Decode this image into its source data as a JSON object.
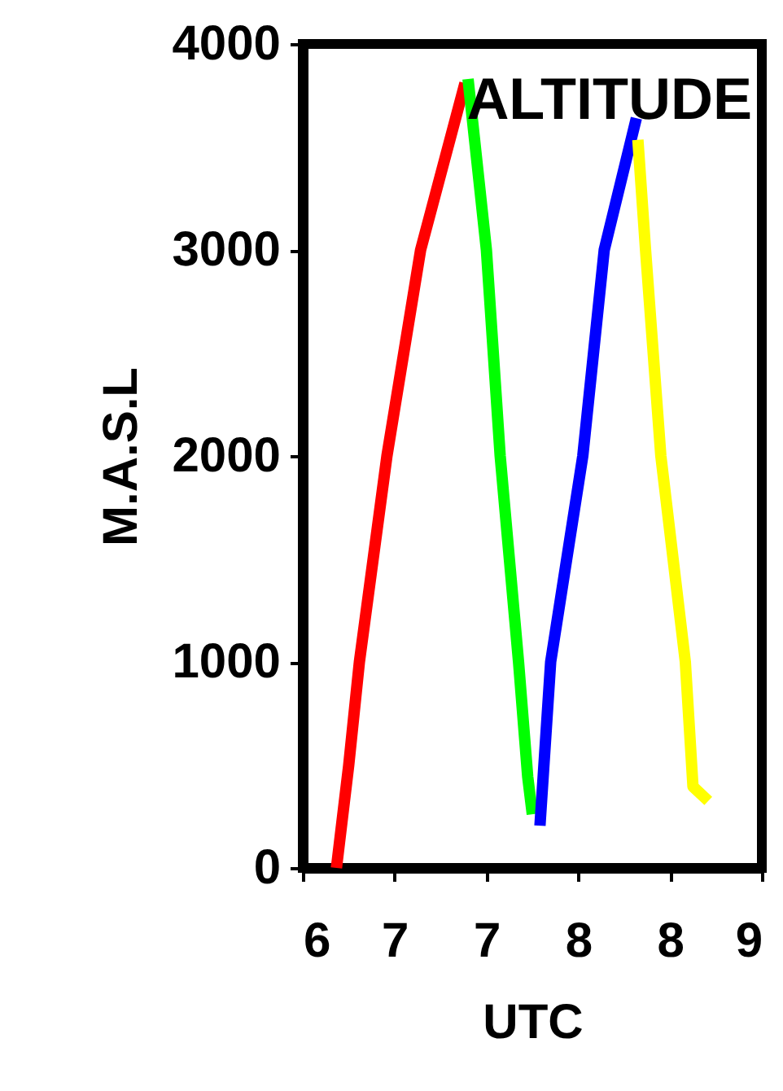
{
  "chart_data": {
    "type": "line",
    "title": "ALTITUDE",
    "xlabel": "UTC",
    "ylabel": "M.A.S.L",
    "series": [
      {
        "color": "#ff0000",
        "x": [
          6.22,
          6.3,
          6.37,
          6.55,
          6.77,
          7.06
        ],
        "values": [
          0,
          497,
          1000,
          2000,
          3000,
          3810
        ]
      },
      {
        "color": "#00ff00",
        "x": [
          7.08,
          7.2,
          7.29,
          7.41,
          7.47,
          7.5
        ],
        "values": [
          3830,
          3000,
          2000,
          1000,
          442,
          260
        ]
      },
      {
        "color": "#0000ff",
        "x": [
          7.55,
          7.62,
          7.83,
          7.97,
          8.18
        ],
        "values": [
          205,
          1000,
          2000,
          3000,
          3640
        ]
      },
      {
        "color": "#ffff00",
        "x": [
          8.19,
          8.24,
          8.34,
          8.5,
          8.55,
          8.65
        ],
        "values": [
          3535,
          3000,
          2000,
          1000,
          395,
          325
        ]
      }
    ],
    "xlim": [
      6,
      9
    ],
    "xticks": [
      {
        "value": 6.0,
        "label": "6"
      },
      {
        "value": 6.6,
        "label": "7"
      },
      {
        "value": 7.2,
        "label": "7"
      },
      {
        "value": 7.8,
        "label": "8"
      },
      {
        "value": 8.4,
        "label": "8"
      },
      {
        "value": 9.0,
        "label": "9"
      }
    ],
    "ylim": [
      0,
      4000
    ],
    "yticks": [
      0,
      1000,
      2000,
      3000,
      4000
    ],
    "grid": false,
    "marker": "none",
    "line_style": "solid"
  }
}
